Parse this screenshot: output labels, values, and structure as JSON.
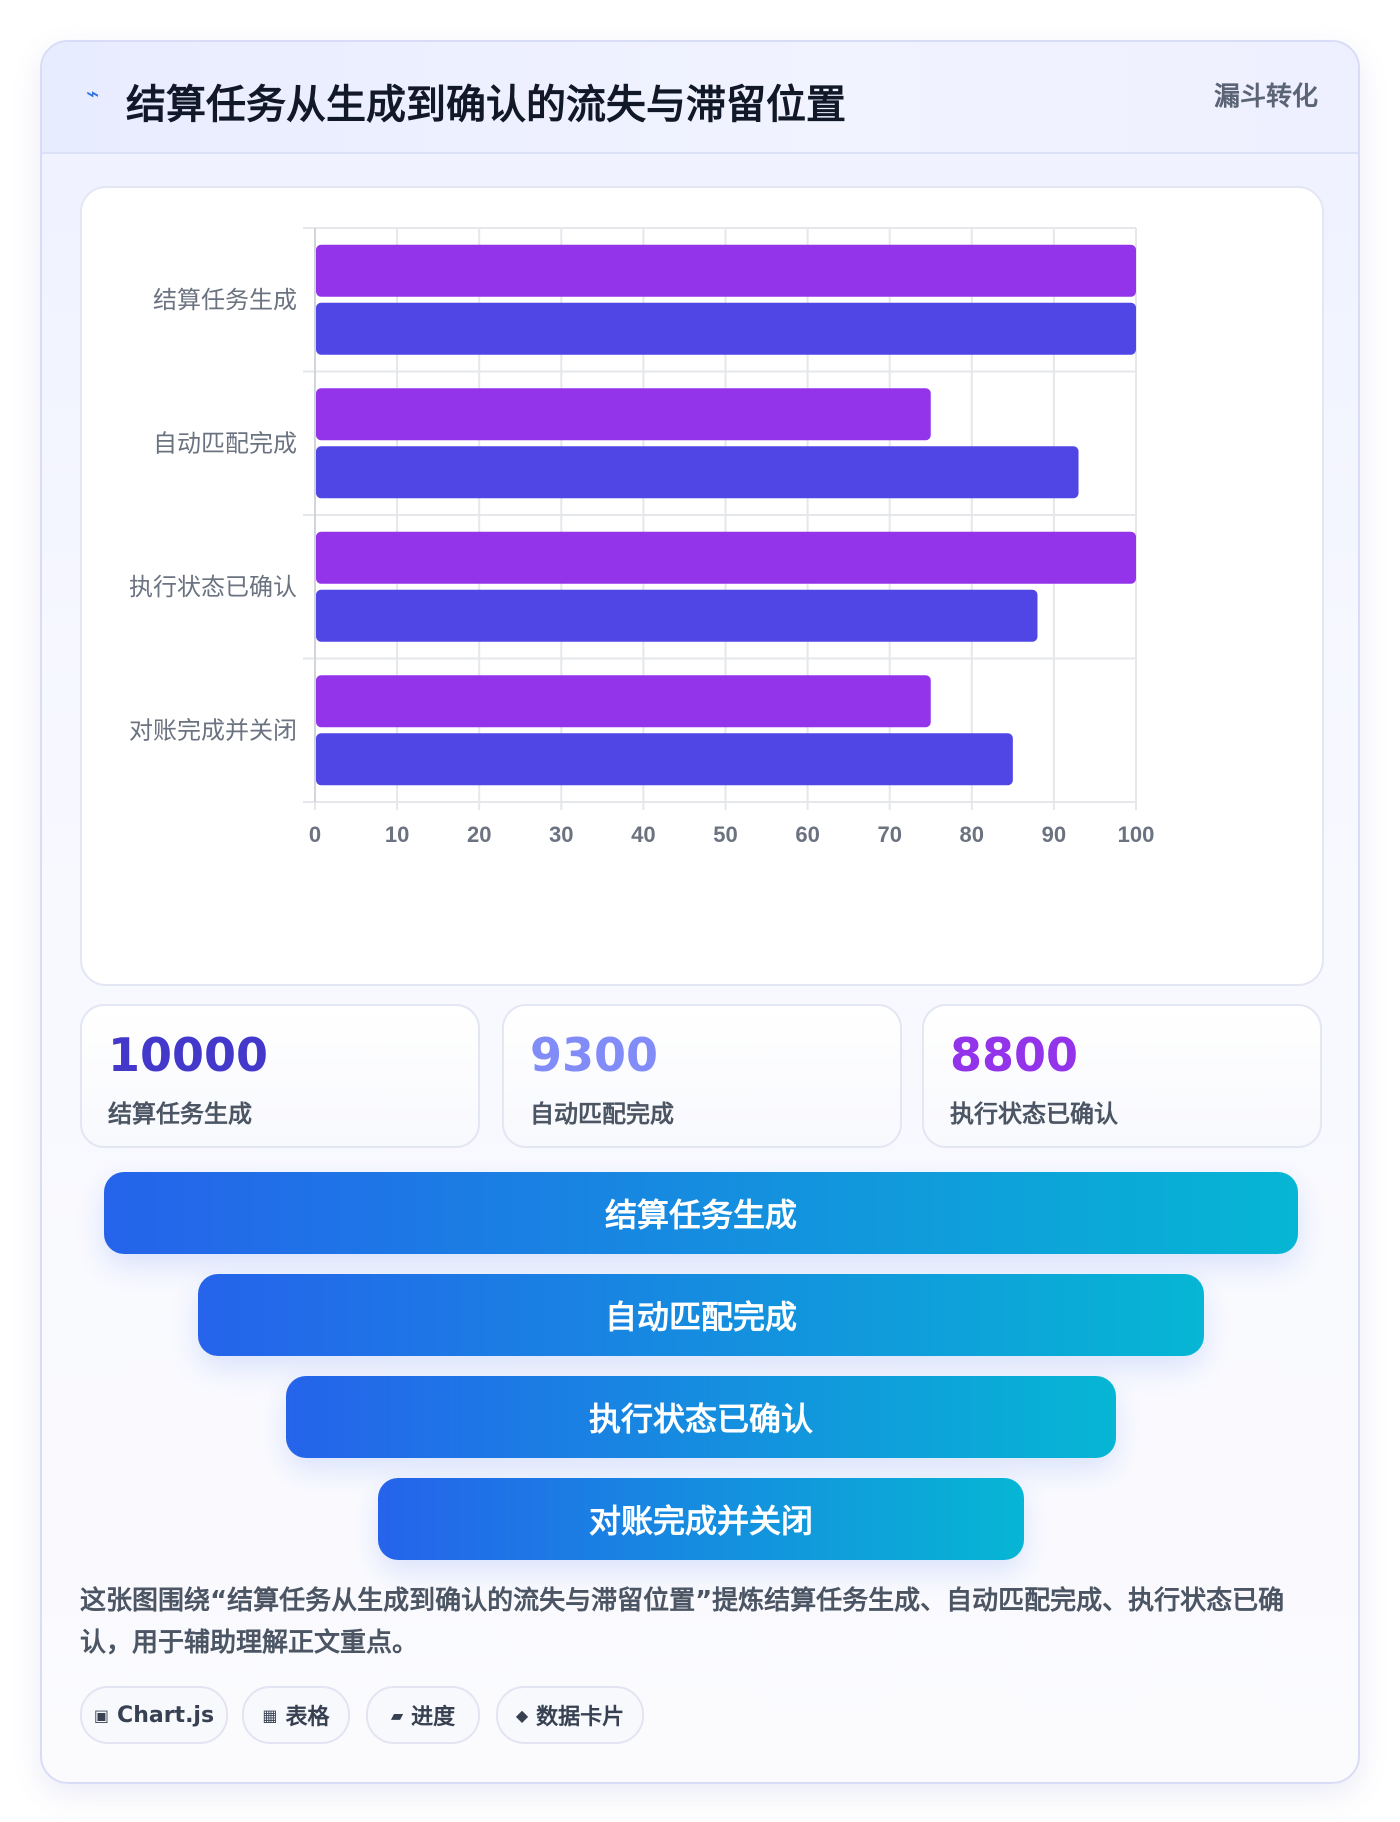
{
  "header": {
    "icon": "lightning-icon",
    "title": "结算任务从生成到确认的流失与滞留位置",
    "tag": "漏斗转化"
  },
  "chart_data": {
    "type": "bar",
    "orientation": "horizontal",
    "categories": [
      "结算任务生成",
      "自动匹配完成",
      "执行状态已确认",
      "对账完成并关闭"
    ],
    "series": [
      {
        "color": "#9333ea",
        "values": [
          100,
          75,
          100,
          75
        ]
      },
      {
        "color": "#4f46e5",
        "values": [
          100,
          93,
          88,
          85
        ]
      }
    ],
    "xlim": [
      0,
      100
    ],
    "xticks": [
      0,
      10,
      20,
      30,
      40,
      50,
      60,
      70,
      80,
      90,
      100
    ],
    "grid": true,
    "legend": "none"
  },
  "stats": [
    {
      "value": "10000",
      "label": "结算任务生成",
      "color": "#4338ca"
    },
    {
      "value": "9300",
      "label": "自动匹配完成",
      "color": "#818cf8"
    },
    {
      "value": "8800",
      "label": "执行状态已确认",
      "color": "#9333ea"
    }
  ],
  "funnel": [
    {
      "label": "结算任务生成"
    },
    {
      "label": "自动匹配完成"
    },
    {
      "label": "执行状态已确认"
    },
    {
      "label": "对账完成并关闭"
    }
  ],
  "description": "这张图围绕“结算任务从生成到确认的流失与滞留位置”提炼结算任务生成、自动匹配完成、执行状态已确认，用于辅助理解正文重点。",
  "chips": [
    {
      "icon": "chart-icon",
      "glyph": "▣",
      "label": "Chart.js"
    },
    {
      "icon": "table-icon",
      "glyph": "▦",
      "label": "表格"
    },
    {
      "icon": "progress-icon",
      "glyph": "▰",
      "label": "进度"
    },
    {
      "icon": "diamond-icon",
      "glyph": "◆",
      "label": "数据卡片"
    }
  ],
  "colors": {
    "accent": "#2563eb",
    "funnel_start": "#2563eb",
    "funnel_end": "#06b6d4",
    "title": "#111827"
  }
}
